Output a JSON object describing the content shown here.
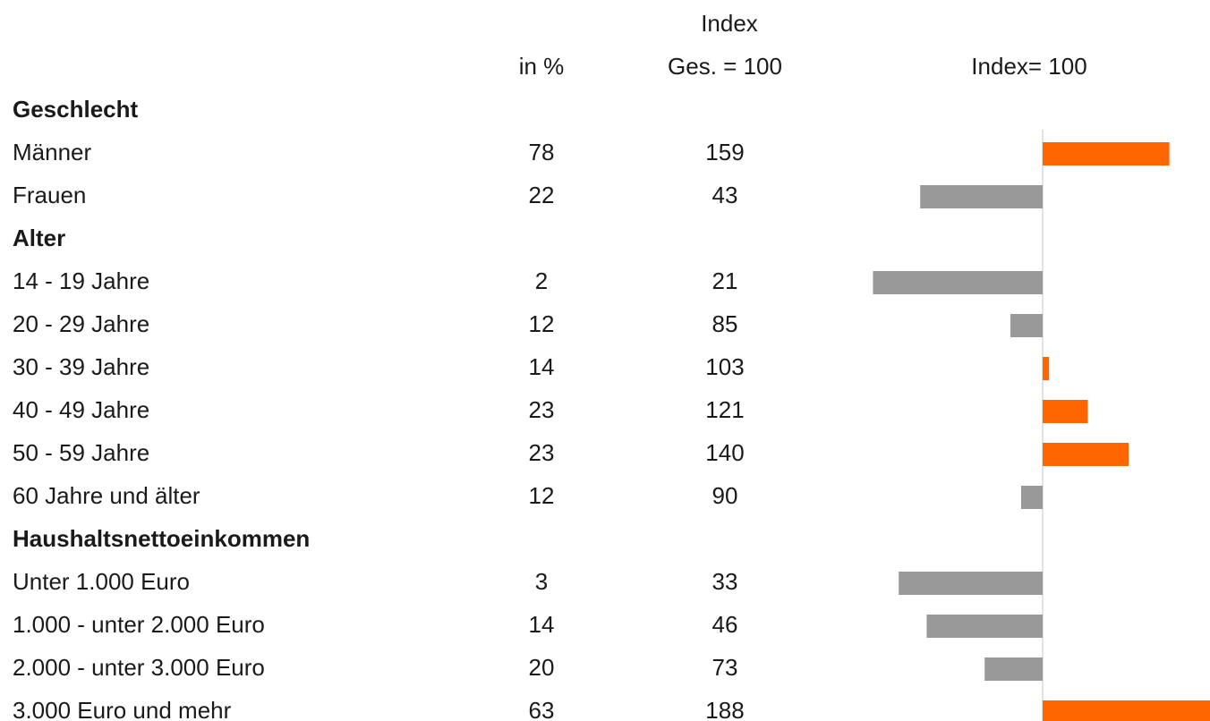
{
  "chart_data": {
    "type": "bar",
    "headers": {
      "index_top": "Index",
      "percent": "in %",
      "index": "Ges. = 100",
      "bars": "Index= 100"
    },
    "baseline": 100,
    "xlim": [
      0,
      200
    ],
    "colors": {
      "above": "#ff6600",
      "below": "#999999"
    },
    "groups": [
      {
        "name": "Geschlecht",
        "rows": [
          {
            "label": "Männer",
            "percent": 78,
            "index": 159
          },
          {
            "label": "Frauen",
            "percent": 22,
            "index": 43
          }
        ]
      },
      {
        "name": "Alter",
        "rows": [
          {
            "label": "14 - 19 Jahre",
            "percent": 2,
            "index": 21
          },
          {
            "label": "20 - 29 Jahre",
            "percent": 12,
            "index": 85
          },
          {
            "label": "30 - 39 Jahre",
            "percent": 14,
            "index": 103
          },
          {
            "label": "40 - 49 Jahre",
            "percent": 23,
            "index": 121
          },
          {
            "label": "50 - 59 Jahre",
            "percent": 23,
            "index": 140
          },
          {
            "label": "60 Jahre und älter",
            "percent": 12,
            "index": 90
          }
        ]
      },
      {
        "name": "Haushaltsnettoeinkommen",
        "rows": [
          {
            "label": "Unter 1.000 Euro",
            "percent": 3,
            "index": 33
          },
          {
            "label": "1.000 - unter 2.000 Euro",
            "percent": 14,
            "index": 46
          },
          {
            "label": "2.000 - unter 3.000 Euro",
            "percent": 20,
            "index": 73
          },
          {
            "label": "3.000 Euro und mehr",
            "percent": 63,
            "index": 188
          }
        ]
      }
    ]
  }
}
